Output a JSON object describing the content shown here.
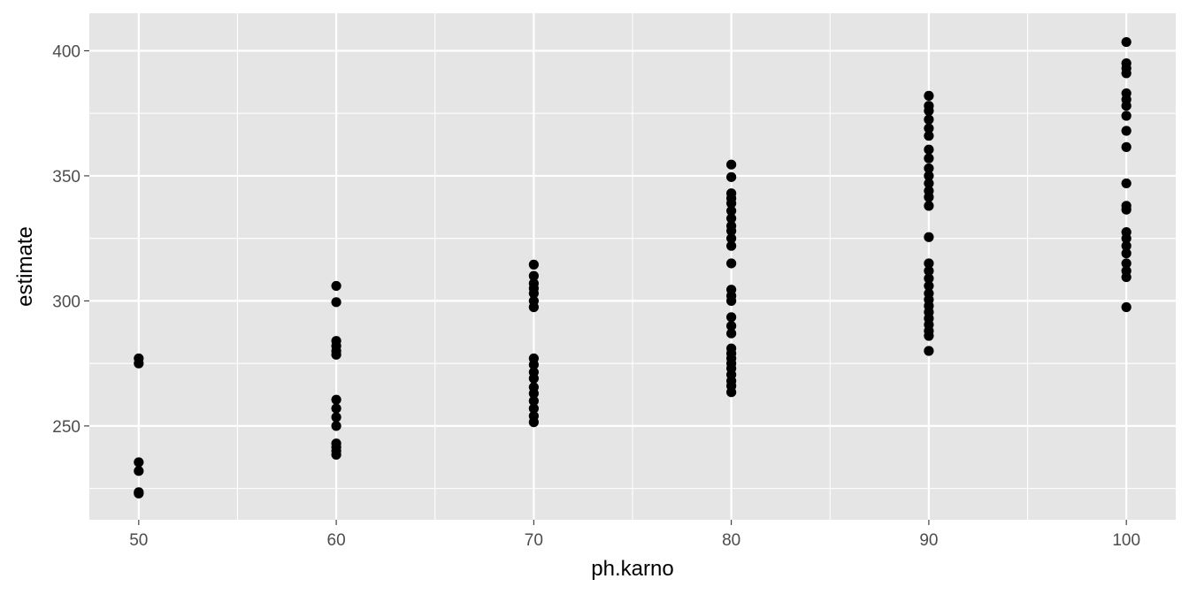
{
  "chart_data": {
    "type": "scatter",
    "title": "",
    "xlabel": "ph.karno",
    "ylabel": "estimate",
    "xlim": [
      47.5,
      102.5
    ],
    "ylim": [
      212.5,
      415
    ],
    "x_ticks": [
      50,
      60,
      70,
      80,
      90,
      100
    ],
    "x_tick_labels": [
      "50",
      "60",
      "70",
      "80",
      "90",
      "100"
    ],
    "y_ticks": [
      250,
      300,
      350,
      400
    ],
    "y_tick_labels": [
      "250",
      "300",
      "350",
      "400"
    ],
    "grid": true,
    "legend": "none",
    "colors": {
      "panel": "#e5e5e5",
      "grid": "#ffffff",
      "point": "#000000",
      "tick_text": "#4d4d4d",
      "tick_mark": "#333333"
    },
    "series": [
      {
        "points": [
          [
            50,
            277
          ],
          [
            50,
            275
          ],
          [
            50,
            235.5
          ],
          [
            50,
            232
          ],
          [
            50,
            223.5
          ],
          [
            50,
            223
          ],
          [
            60,
            306
          ],
          [
            60,
            299.5
          ],
          [
            60,
            284
          ],
          [
            60,
            282
          ],
          [
            60,
            280
          ],
          [
            60,
            278.5
          ],
          [
            60,
            260.5
          ],
          [
            60,
            257
          ],
          [
            60,
            253.5
          ],
          [
            60,
            250
          ],
          [
            60,
            243
          ],
          [
            60,
            241.5
          ],
          [
            60,
            240
          ],
          [
            60,
            238.5
          ],
          [
            70,
            314.5
          ],
          [
            70,
            310
          ],
          [
            70,
            307
          ],
          [
            70,
            305
          ],
          [
            70,
            303
          ],
          [
            70,
            300
          ],
          [
            70,
            297.5
          ],
          [
            70,
            277
          ],
          [
            70,
            274.5
          ],
          [
            70,
            271.5
          ],
          [
            70,
            269
          ],
          [
            70,
            265.5
          ],
          [
            70,
            263
          ],
          [
            70,
            260
          ],
          [
            70,
            257
          ],
          [
            70,
            254
          ],
          [
            70,
            251.5
          ],
          [
            80,
            354.5
          ],
          [
            80,
            349.5
          ],
          [
            80,
            343
          ],
          [
            80,
            341
          ],
          [
            80,
            339
          ],
          [
            80,
            336
          ],
          [
            80,
            333
          ],
          [
            80,
            330
          ],
          [
            80,
            328
          ],
          [
            80,
            325
          ],
          [
            80,
            322
          ],
          [
            80,
            315
          ],
          [
            80,
            304.5
          ],
          [
            80,
            302
          ],
          [
            80,
            300
          ],
          [
            80,
            293.5
          ],
          [
            80,
            290
          ],
          [
            80,
            287
          ],
          [
            80,
            281
          ],
          [
            80,
            279
          ],
          [
            80,
            277
          ],
          [
            80,
            275
          ],
          [
            80,
            273
          ],
          [
            80,
            270.5
          ],
          [
            80,
            268
          ],
          [
            80,
            266
          ],
          [
            80,
            263.5
          ],
          [
            90,
            382
          ],
          [
            90,
            378
          ],
          [
            90,
            376
          ],
          [
            90,
            372.5
          ],
          [
            90,
            369
          ],
          [
            90,
            366
          ],
          [
            90,
            360.5
          ],
          [
            90,
            357
          ],
          [
            90,
            353
          ],
          [
            90,
            350
          ],
          [
            90,
            347
          ],
          [
            90,
            344
          ],
          [
            90,
            341.5
          ],
          [
            90,
            338
          ],
          [
            90,
            325.5
          ],
          [
            90,
            315
          ],
          [
            90,
            312
          ],
          [
            90,
            309
          ],
          [
            90,
            306
          ],
          [
            90,
            303
          ],
          [
            90,
            300.5
          ],
          [
            90,
            298
          ],
          [
            90,
            295.5
          ],
          [
            90,
            293
          ],
          [
            90,
            290.5
          ],
          [
            90,
            288
          ],
          [
            90,
            286
          ],
          [
            90,
            280
          ],
          [
            100,
            403.5
          ],
          [
            100,
            395
          ],
          [
            100,
            393
          ],
          [
            100,
            391
          ],
          [
            100,
            383
          ],
          [
            100,
            380.5
          ],
          [
            100,
            378
          ],
          [
            100,
            374
          ],
          [
            100,
            368
          ],
          [
            100,
            361.5
          ],
          [
            100,
            347
          ],
          [
            100,
            338
          ],
          [
            100,
            336.5
          ],
          [
            100,
            327.5
          ],
          [
            100,
            325
          ],
          [
            100,
            322
          ],
          [
            100,
            319
          ],
          [
            100,
            315
          ],
          [
            100,
            312
          ],
          [
            100,
            309.5
          ],
          [
            100,
            297.5
          ]
        ]
      }
    ]
  }
}
